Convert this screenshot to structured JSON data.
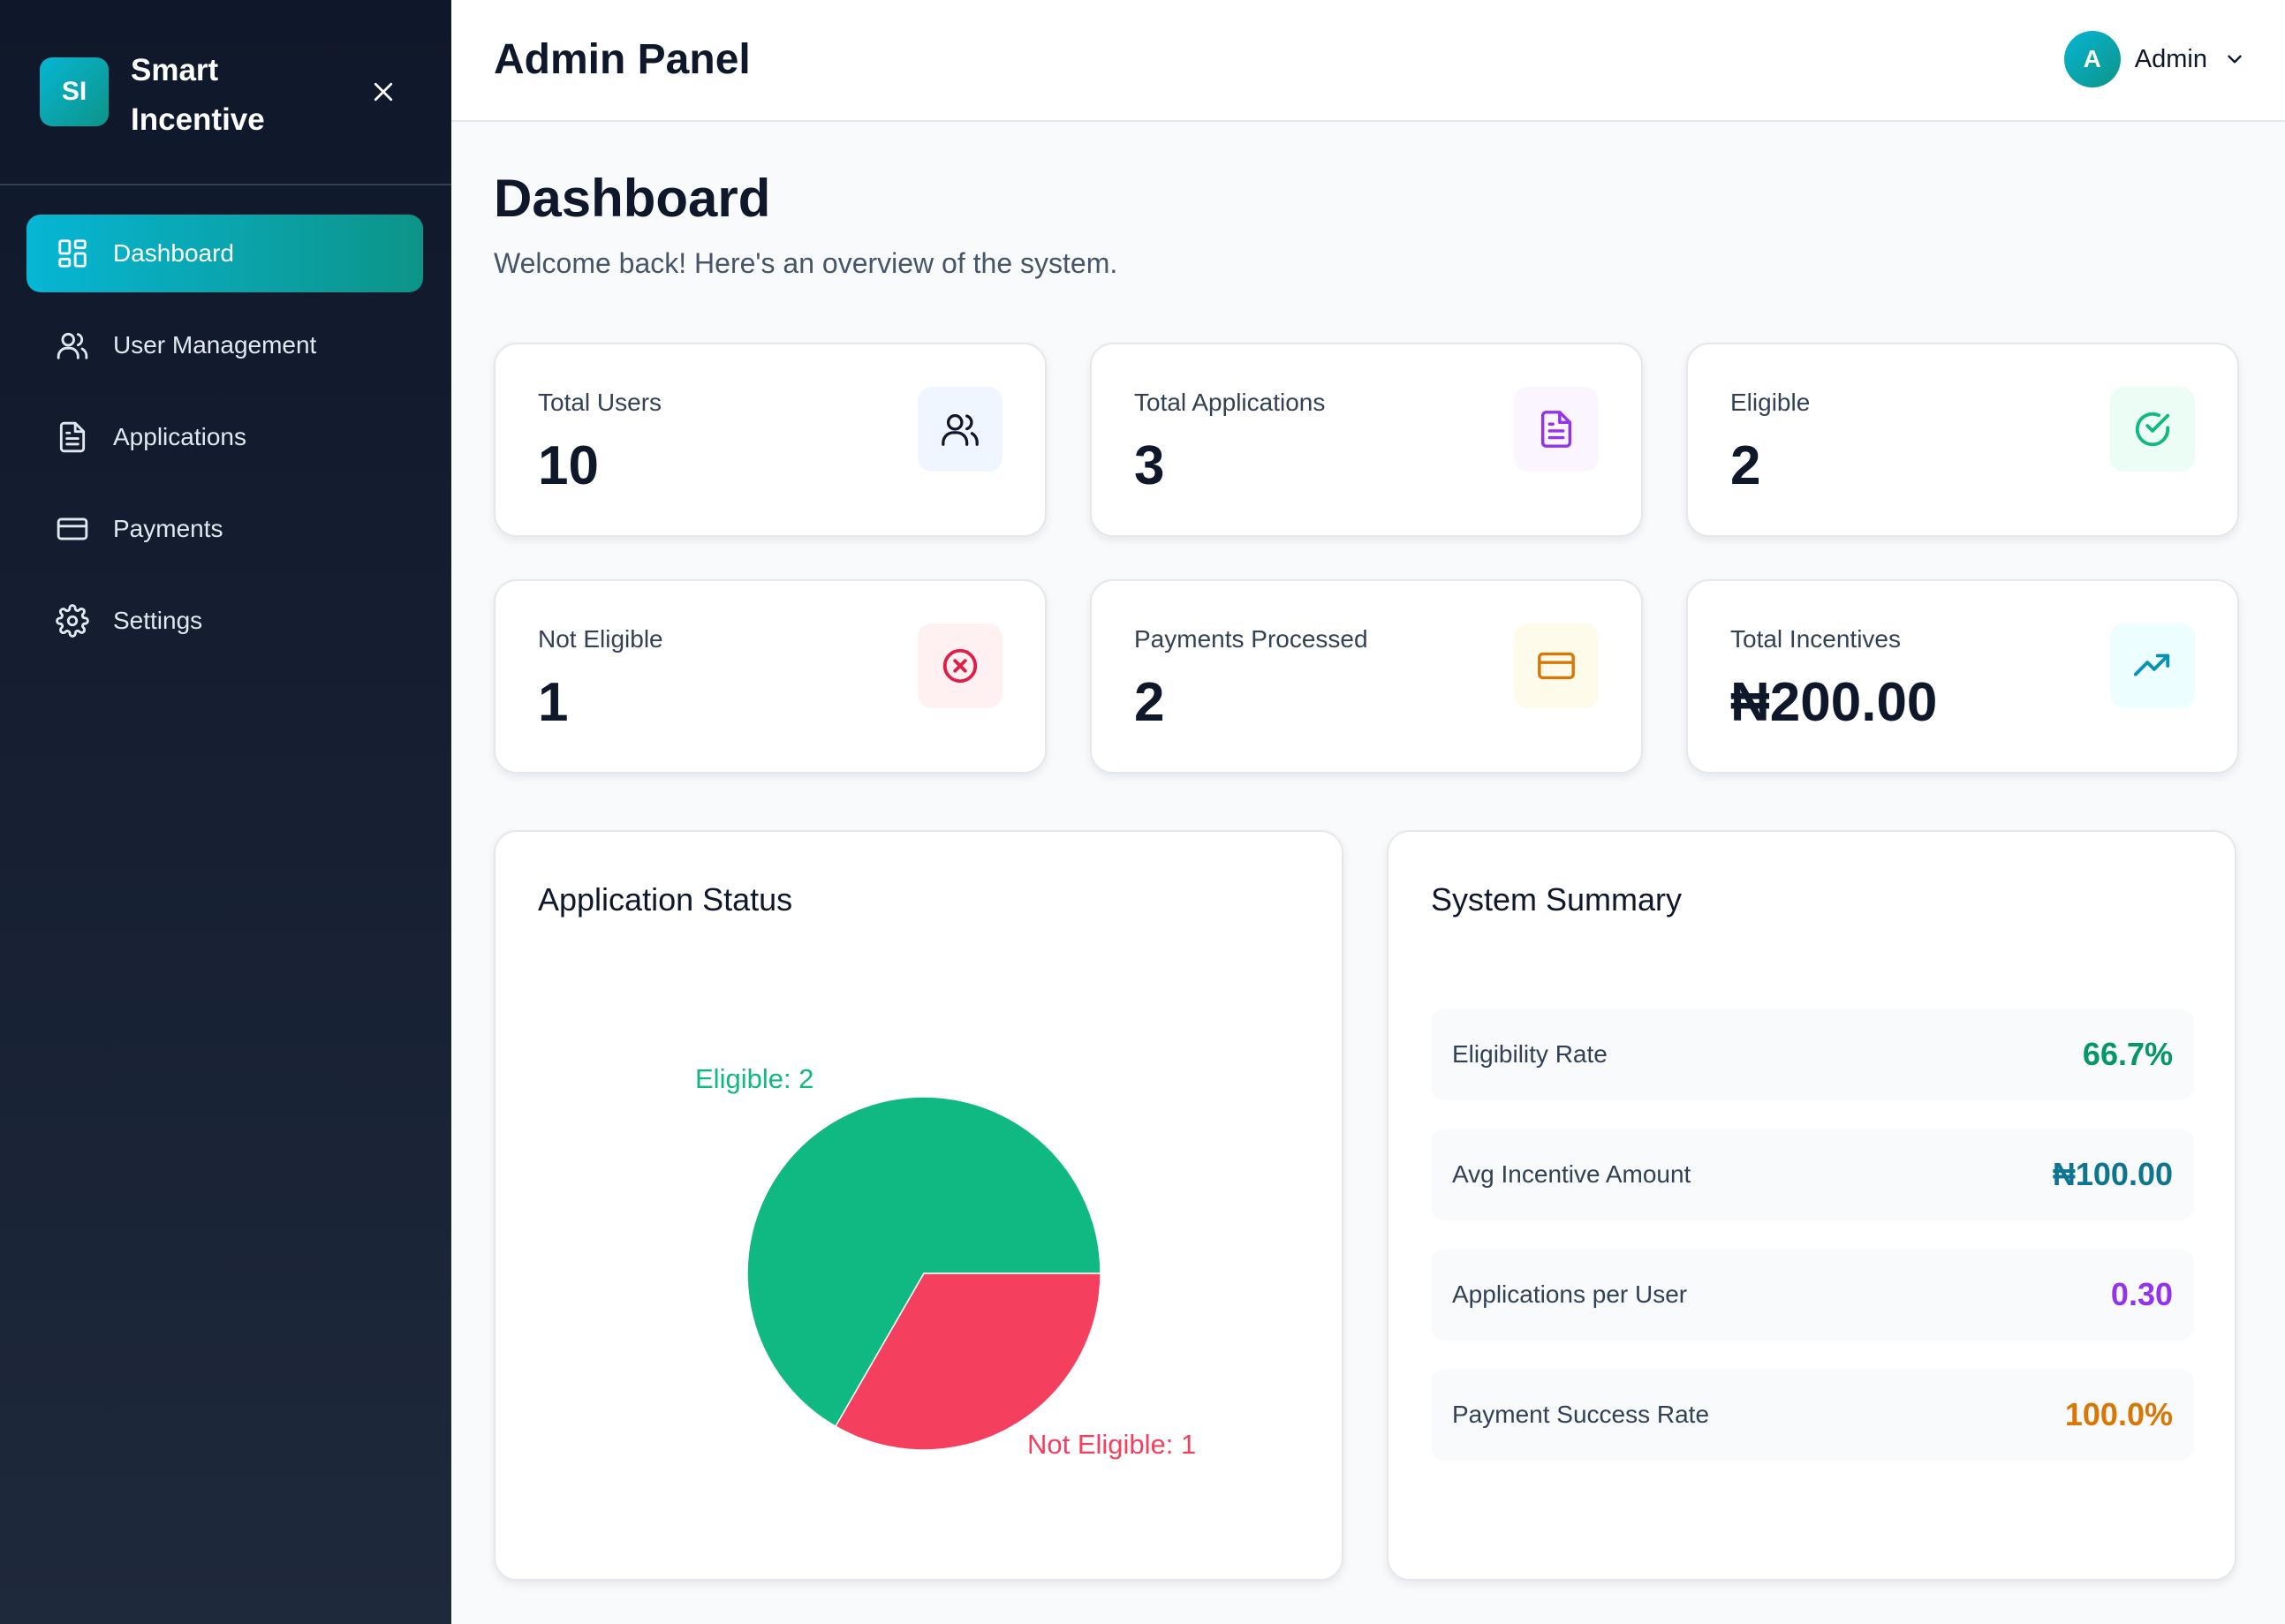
{
  "brand": {
    "initials": "SI",
    "name": "Smart Incentive"
  },
  "header": {
    "title": "Admin Panel",
    "user": {
      "initial": "A",
      "name": "Admin"
    }
  },
  "sidebar": {
    "items": [
      {
        "label": "Dashboard",
        "icon": "dashboard-grid-icon",
        "active": true
      },
      {
        "label": "User Management",
        "icon": "users-icon"
      },
      {
        "label": "Applications",
        "icon": "file-icon"
      },
      {
        "label": "Payments",
        "icon": "credit-card-icon"
      },
      {
        "label": "Settings",
        "icon": "gear-icon"
      }
    ]
  },
  "page": {
    "title": "Dashboard",
    "subtitle": "Welcome back! Here's an overview of the system."
  },
  "stats": [
    {
      "label": "Total Users",
      "value": "10",
      "icon": "users-icon",
      "color": "#0f172a",
      "bg": "#eff6ff"
    },
    {
      "label": "Total Applications",
      "value": "3",
      "icon": "file-icon",
      "color": "#9333ea",
      "bg": "#faf5ff"
    },
    {
      "label": "Eligible",
      "value": "2",
      "icon": "check-circle-icon",
      "color": "#10b981",
      "bg": "#ecfdf5"
    },
    {
      "label": "Not Eligible",
      "value": "1",
      "icon": "x-circle-icon",
      "color": "#e11d48",
      "bg": "#fff1f2"
    },
    {
      "label": "Payments Processed",
      "value": "2",
      "icon": "credit-card-icon",
      "color": "#d97706",
      "bg": "#fffbeb"
    },
    {
      "label": "Total Incentives",
      "value": "₦200.00",
      "icon": "trending-up-icon",
      "color": "#0891b2",
      "bg": "#ecfeff"
    }
  ],
  "application_status": {
    "title": "Application Status",
    "slices": [
      {
        "name": "Eligible",
        "label": "Eligible: 2",
        "value": 2,
        "color": "#10b981"
      },
      {
        "name": "Not Eligible",
        "label": "Not Eligible: 1",
        "value": 1,
        "color": "#f43f5e"
      }
    ]
  },
  "summary": {
    "title": "System Summary",
    "rows": [
      {
        "label": "Eligibility Rate",
        "value": "66.7%",
        "color": "#059669"
      },
      {
        "label": "Avg Incentive Amount",
        "value": "₦100.00",
        "color": "#0e7490"
      },
      {
        "label": "Applications per User",
        "value": "0.30",
        "color": "#9333ea"
      },
      {
        "label": "Payment Success Rate",
        "value": "100.0%",
        "color": "#d97706"
      }
    ]
  }
}
